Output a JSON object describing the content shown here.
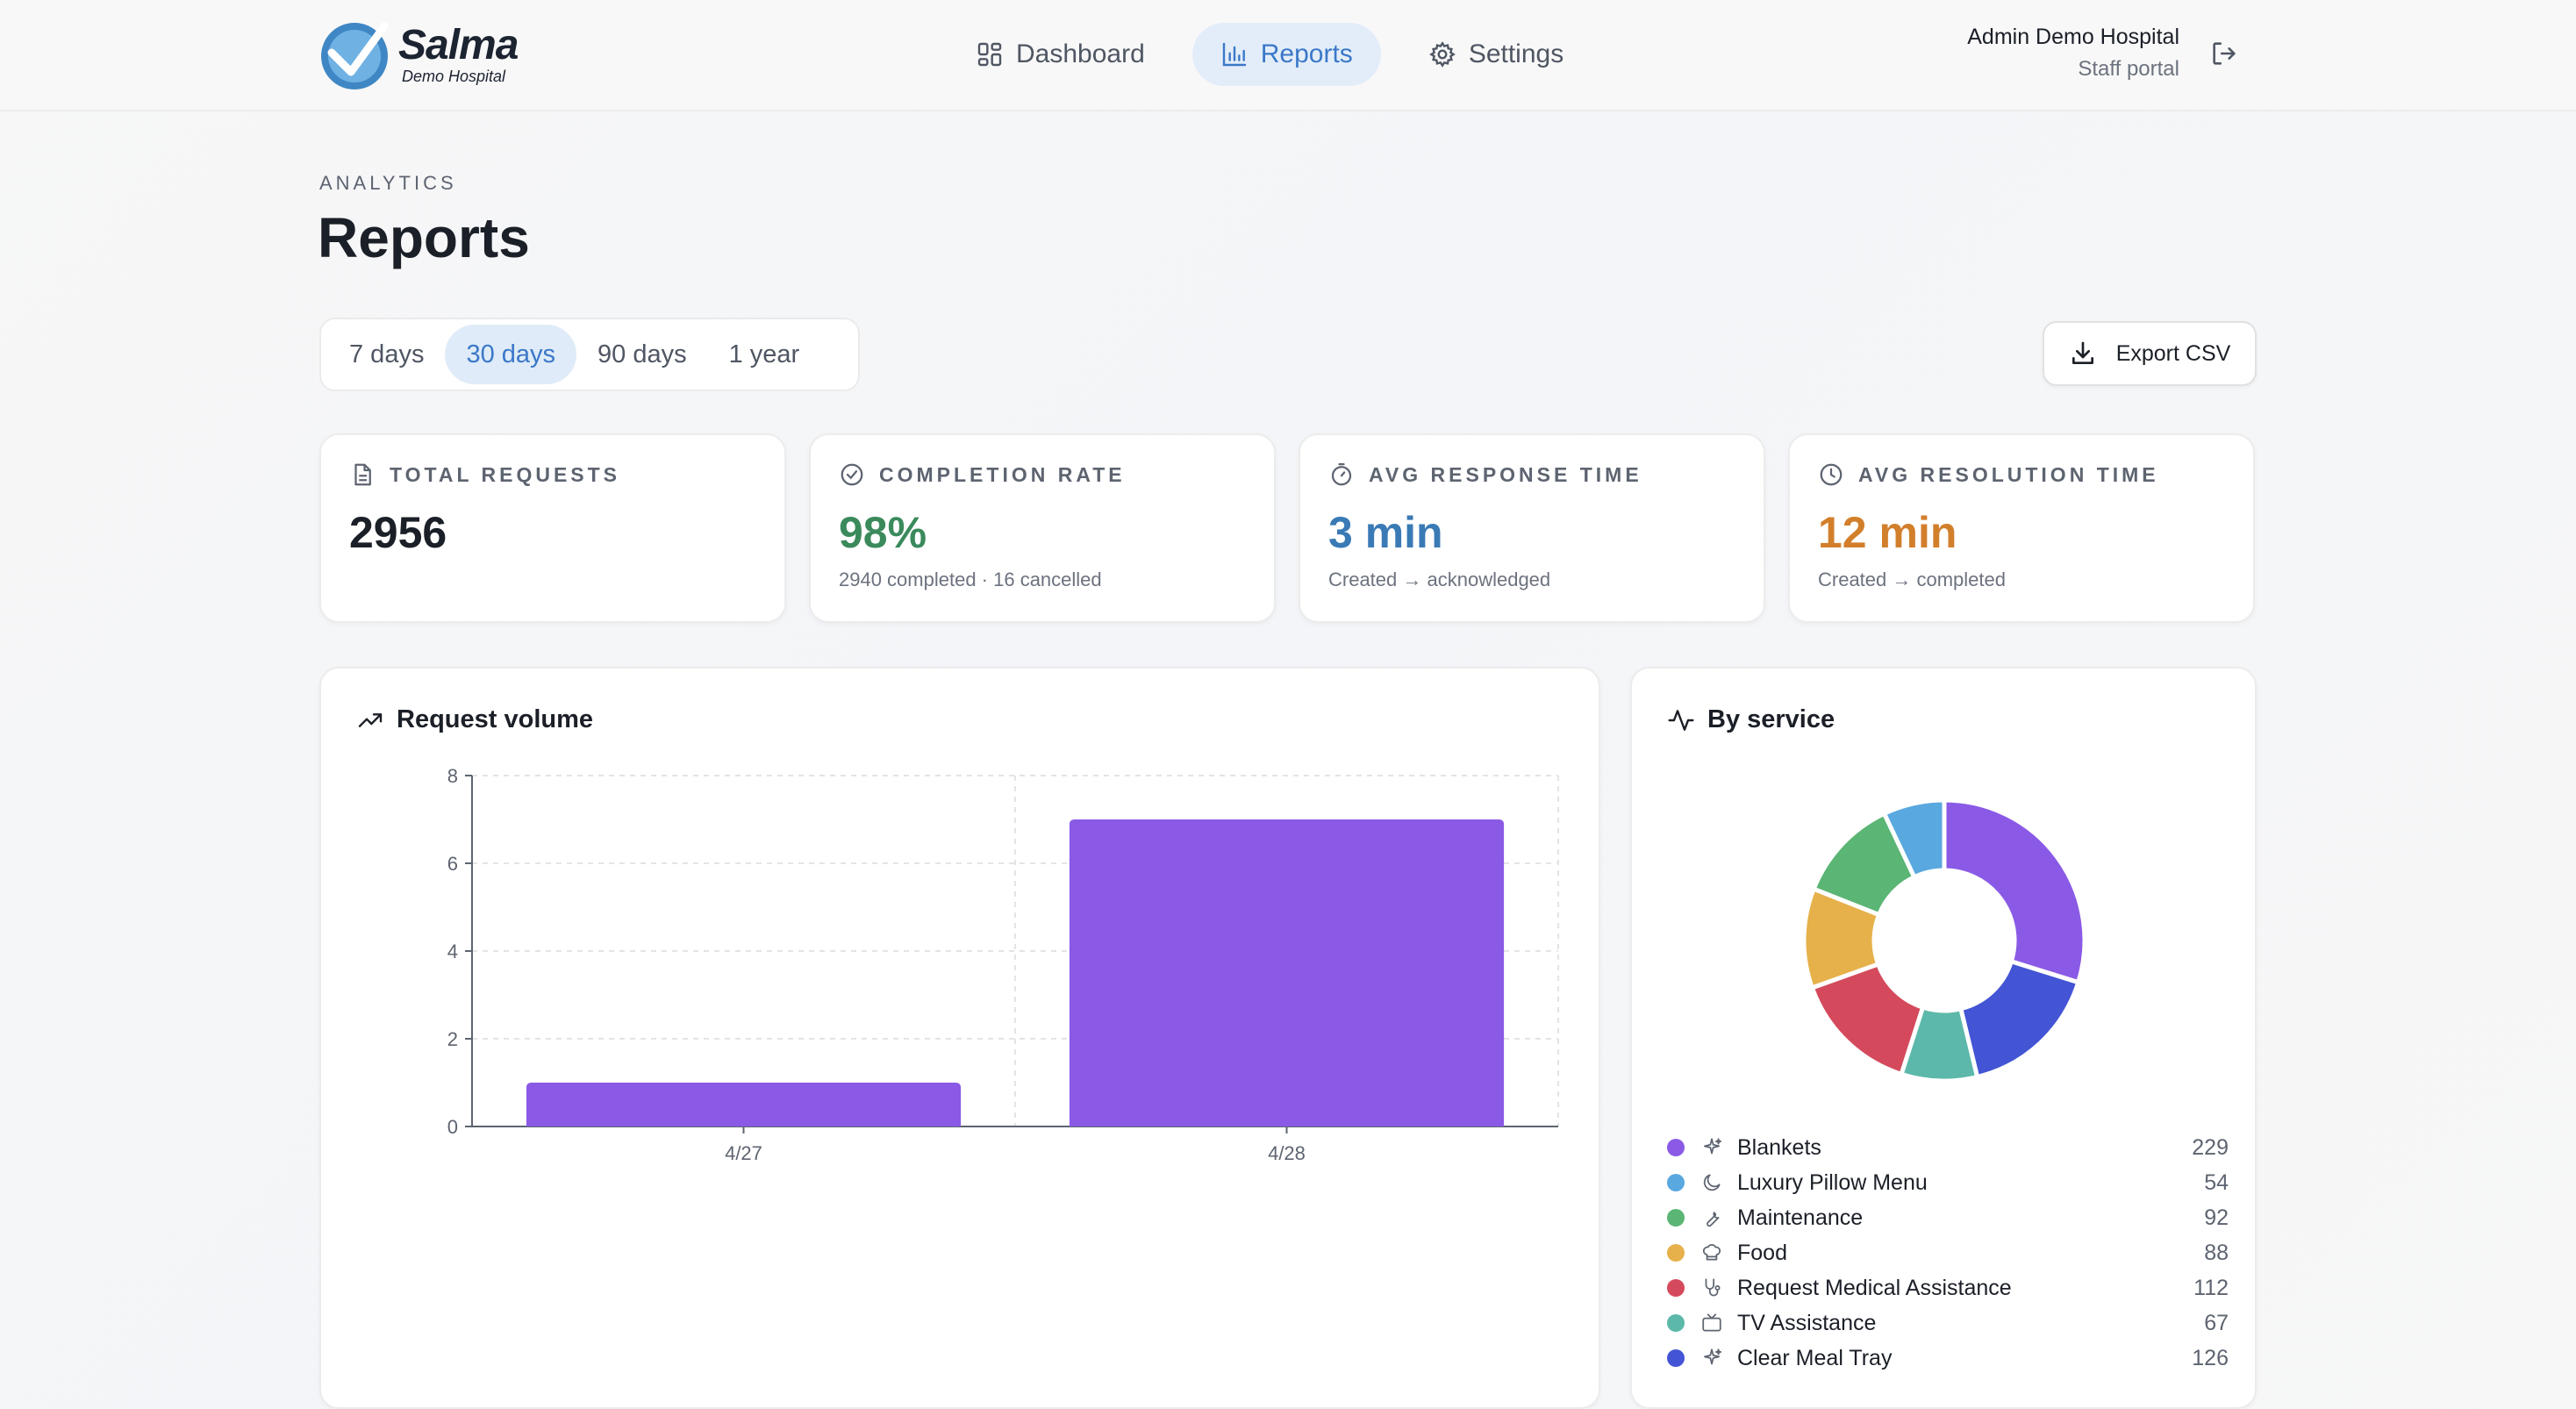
{
  "brand": {
    "name": "Salma",
    "sub": "Demo Hospital"
  },
  "nav": {
    "items": [
      {
        "label": "Dashboard",
        "icon": "grid-icon"
      },
      {
        "label": "Reports",
        "icon": "bar-chart-icon"
      },
      {
        "label": "Settings",
        "icon": "gear-icon"
      }
    ],
    "active": "Reports"
  },
  "user": {
    "name": "Admin Demo Hospital",
    "role": "Staff portal"
  },
  "page": {
    "eyebrow": "ANALYTICS",
    "title": "Reports"
  },
  "range": {
    "options": [
      "7 days",
      "30 days",
      "90 days",
      "1 year"
    ],
    "selected": "30 days"
  },
  "export_label": "Export CSV",
  "stats": [
    {
      "label": "TOTAL REQUESTS",
      "value": "2956",
      "sub": "",
      "icon": "document-icon",
      "color": "#1b1f27"
    },
    {
      "label": "COMPLETION RATE",
      "value": "98%",
      "sub": "2940 completed · 16 cancelled",
      "icon": "check-circle-icon",
      "color": "#3a8a5c"
    },
    {
      "label": "AVG RESPONSE TIME",
      "value": "3 min",
      "sub": "Created → acknowledged",
      "icon": "stopwatch-icon",
      "color": "#3a7ab5"
    },
    {
      "label": "AVG RESOLUTION TIME",
      "value": "12 min",
      "sub": "Created → completed",
      "icon": "clock-icon",
      "color": "#d27f2c"
    }
  ],
  "volume_panel": {
    "title": "Request volume"
  },
  "service_panel": {
    "title": "By service"
  },
  "chart_data": [
    {
      "type": "bar",
      "title": "Request volume",
      "categories": [
        "4/27",
        "4/28"
      ],
      "values": [
        1,
        7
      ],
      "ylim": [
        0,
        8
      ],
      "yticks": [
        0,
        2,
        4,
        6,
        8
      ],
      "color": "#8a5ae6",
      "grid": true
    },
    {
      "type": "pie",
      "title": "By service",
      "donut": true,
      "slices": [
        {
          "label": "Blankets",
          "value": 229,
          "color": "#8a5ae6",
          "icon": "sparkles-icon"
        },
        {
          "label": "Clear Meal Tray",
          "value": 126,
          "color": "#4355d4",
          "icon": "sparkles-icon"
        },
        {
          "label": "TV Assistance",
          "value": 67,
          "color": "#5bb8aa",
          "icon": "tv-icon"
        },
        {
          "label": "Request Medical Assistance",
          "value": 112,
          "color": "#d44a5c",
          "icon": "stethoscope-icon"
        },
        {
          "label": "Food",
          "value": 88,
          "color": "#e6b14a",
          "icon": "chef-hat-icon"
        },
        {
          "label": "Maintenance",
          "value": 92,
          "color": "#5bb574",
          "icon": "wrench-icon"
        },
        {
          "label": "Luxury Pillow Menu",
          "value": 54,
          "color": "#5aa8e0",
          "icon": "moon-icon"
        }
      ]
    }
  ],
  "legend": [
    {
      "label": "Blankets",
      "count": "229",
      "color": "#8a5ae6",
      "icon": "sparkles-icon"
    },
    {
      "label": "Luxury Pillow Menu",
      "count": "54",
      "color": "#5aa8e0",
      "icon": "moon-icon"
    },
    {
      "label": "Maintenance",
      "count": "92",
      "color": "#5bb574",
      "icon": "wrench-icon"
    },
    {
      "label": "Food",
      "count": "88",
      "color": "#e6b14a",
      "icon": "chef-hat-icon"
    },
    {
      "label": "Request Medical Assistance",
      "count": "112",
      "color": "#d44a5c",
      "icon": "stethoscope-icon"
    },
    {
      "label": "TV Assistance",
      "count": "67",
      "color": "#5bb8aa",
      "icon": "tv-icon"
    },
    {
      "label": "Clear Meal Tray",
      "count": "126",
      "color": "#4355d4",
      "icon": "sparkles-icon"
    }
  ]
}
